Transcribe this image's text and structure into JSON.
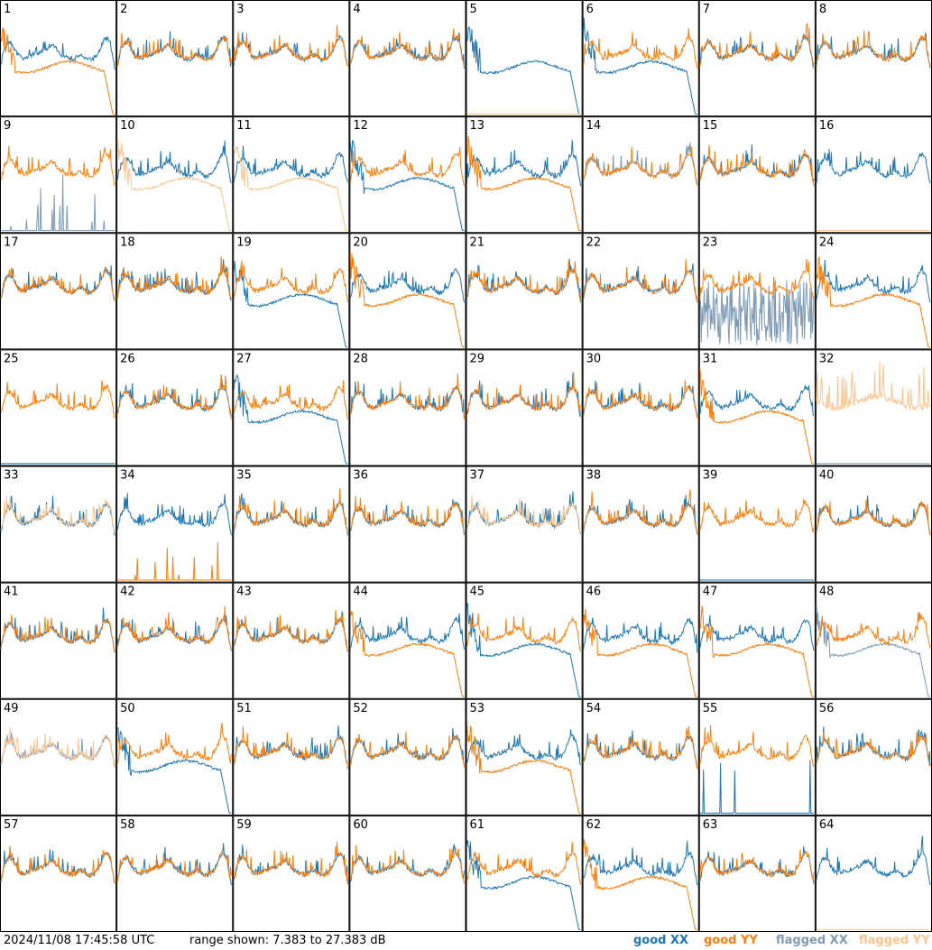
{
  "footer": {
    "timestamp": "2024/11/08 17:45:58 UTC",
    "range_text": "range shown: 7.383 to 27.383 dB",
    "legend": {
      "good_xx": "good XX",
      "good_yy": "good YY",
      "flagged_xx": "flagged XX",
      "flagged_yy": "flagged YY"
    }
  },
  "colors": {
    "good_xx": "#1f77b4",
    "good_yy": "#ff7f0e",
    "flagged_xx": "#7f9bb5",
    "flagged_yy": "#fec48c",
    "grid": "#000000",
    "background": "#ffffff"
  },
  "chart_data": {
    "type": "line",
    "layout": "8x8 small multiples",
    "y_range_db": [
      7.383,
      27.383
    ],
    "tiles": [
      {
        "label": "1",
        "xx": "good",
        "yy": "good",
        "shape_xx": "normal",
        "shape_yy": "low"
      },
      {
        "label": "2",
        "xx": "good",
        "yy": "good",
        "shape_xx": "normal",
        "shape_yy": "normal"
      },
      {
        "label": "3",
        "xx": "good",
        "yy": "good",
        "shape_xx": "normal",
        "shape_yy": "normal"
      },
      {
        "label": "4",
        "xx": "good",
        "yy": "good",
        "shape_xx": "normal",
        "shape_yy": "normal"
      },
      {
        "label": "5",
        "xx": "good",
        "yy": "flagged",
        "shape_xx": "low",
        "shape_yy": "off"
      },
      {
        "label": "6",
        "xx": "good",
        "yy": "good",
        "shape_xx": "low",
        "shape_yy": "normal"
      },
      {
        "label": "7",
        "xx": "good",
        "yy": "good",
        "shape_xx": "normal",
        "shape_yy": "normal"
      },
      {
        "label": "8",
        "xx": "good",
        "yy": "good",
        "shape_xx": "normal",
        "shape_yy": "normal"
      },
      {
        "label": "9",
        "xx": "flagged",
        "yy": "good",
        "shape_xx": "spikes",
        "shape_yy": "normal"
      },
      {
        "label": "10",
        "xx": "good",
        "yy": "flagged",
        "shape_xx": "normal",
        "shape_yy": "low"
      },
      {
        "label": "11",
        "xx": "good",
        "yy": "flagged",
        "shape_xx": "normal",
        "shape_yy": "low"
      },
      {
        "label": "12",
        "xx": "good",
        "yy": "good",
        "shape_xx": "low",
        "shape_yy": "normal"
      },
      {
        "label": "13",
        "xx": "good",
        "yy": "good",
        "shape_xx": "normal",
        "shape_yy": "low"
      },
      {
        "label": "14",
        "xx": "flagged",
        "yy": "good",
        "shape_xx": "normal",
        "shape_yy": "normal"
      },
      {
        "label": "15",
        "xx": "good",
        "yy": "good",
        "shape_xx": "normal",
        "shape_yy": "normal"
      },
      {
        "label": "16",
        "xx": "good",
        "yy": "flagged",
        "shape_xx": "normal",
        "shape_yy": "off"
      },
      {
        "label": "17",
        "xx": "good",
        "yy": "good",
        "shape_xx": "normal",
        "shape_yy": "normal"
      },
      {
        "label": "18",
        "xx": "good",
        "yy": "good",
        "shape_xx": "normal",
        "shape_yy": "normal"
      },
      {
        "label": "19",
        "xx": "good",
        "yy": "good",
        "shape_xx": "low",
        "shape_yy": "normal"
      },
      {
        "label": "20",
        "xx": "good",
        "yy": "good",
        "shape_xx": "normal",
        "shape_yy": "low"
      },
      {
        "label": "21",
        "xx": "good",
        "yy": "good",
        "shape_xx": "normal",
        "shape_yy": "normal"
      },
      {
        "label": "22",
        "xx": "good",
        "yy": "good",
        "shape_xx": "normal",
        "shape_yy": "normal"
      },
      {
        "label": "23",
        "xx": "flagged",
        "yy": "good",
        "shape_xx": "noise",
        "shape_yy": "normal"
      },
      {
        "label": "24",
        "xx": "good",
        "yy": "good",
        "shape_xx": "normal",
        "shape_yy": "low"
      },
      {
        "label": "25",
        "xx": "good",
        "yy": "good",
        "shape_xx": "off",
        "shape_yy": "normal"
      },
      {
        "label": "26",
        "xx": "good",
        "yy": "good",
        "shape_xx": "normal",
        "shape_yy": "normal"
      },
      {
        "label": "27",
        "xx": "good",
        "yy": "good",
        "shape_xx": "low",
        "shape_yy": "normal"
      },
      {
        "label": "28",
        "xx": "good",
        "yy": "good",
        "shape_xx": "normal",
        "shape_yy": "normal"
      },
      {
        "label": "29",
        "xx": "good",
        "yy": "good",
        "shape_xx": "normal",
        "shape_yy": "normal"
      },
      {
        "label": "30",
        "xx": "good",
        "yy": "good",
        "shape_xx": "normal",
        "shape_yy": "normal"
      },
      {
        "label": "31",
        "xx": "good",
        "yy": "good",
        "shape_xx": "normal",
        "shape_yy": "low"
      },
      {
        "label": "32",
        "xx": "flagged",
        "yy": "flagged",
        "shape_xx": "off",
        "shape_yy": "spiky"
      },
      {
        "label": "33",
        "xx": "good",
        "yy": "flagged",
        "shape_xx": "normal",
        "shape_yy": "normal"
      },
      {
        "label": "34",
        "xx": "good",
        "yy": "good",
        "shape_xx": "normal",
        "shape_yy": "spikes"
      },
      {
        "label": "35",
        "xx": "good",
        "yy": "good",
        "shape_xx": "normal",
        "shape_yy": "normal"
      },
      {
        "label": "36",
        "xx": "good",
        "yy": "good",
        "shape_xx": "normal",
        "shape_yy": "normal"
      },
      {
        "label": "37",
        "xx": "good",
        "yy": "flagged",
        "shape_xx": "normal",
        "shape_yy": "normal"
      },
      {
        "label": "38",
        "xx": "good",
        "yy": "good",
        "shape_xx": "normal",
        "shape_yy": "normal"
      },
      {
        "label": "39",
        "xx": "good",
        "yy": "good",
        "shape_xx": "off",
        "shape_yy": "normal"
      },
      {
        "label": "40",
        "xx": "good",
        "yy": "good",
        "shape_xx": "normal",
        "shape_yy": "normal"
      },
      {
        "label": "41",
        "xx": "good",
        "yy": "good",
        "shape_xx": "normal",
        "shape_yy": "normal"
      },
      {
        "label": "42",
        "xx": "good",
        "yy": "good",
        "shape_xx": "normal",
        "shape_yy": "normal"
      },
      {
        "label": "43",
        "xx": "good",
        "yy": "good",
        "shape_xx": "normal",
        "shape_yy": "normal"
      },
      {
        "label": "44",
        "xx": "good",
        "yy": "good",
        "shape_xx": "normal",
        "shape_yy": "low"
      },
      {
        "label": "45",
        "xx": "good",
        "yy": "good",
        "shape_xx": "low",
        "shape_yy": "normal"
      },
      {
        "label": "46",
        "xx": "good",
        "yy": "good",
        "shape_xx": "normal",
        "shape_yy": "low"
      },
      {
        "label": "47",
        "xx": "good",
        "yy": "good",
        "shape_xx": "normal",
        "shape_yy": "low"
      },
      {
        "label": "48",
        "xx": "flagged",
        "yy": "good",
        "shape_xx": "low",
        "shape_yy": "normal"
      },
      {
        "label": "49",
        "xx": "flagged",
        "yy": "flagged",
        "shape_xx": "normal",
        "shape_yy": "normal"
      },
      {
        "label": "50",
        "xx": "good",
        "yy": "good",
        "shape_xx": "low",
        "shape_yy": "normal"
      },
      {
        "label": "51",
        "xx": "good",
        "yy": "good",
        "shape_xx": "normal",
        "shape_yy": "normal"
      },
      {
        "label": "52",
        "xx": "good",
        "yy": "good",
        "shape_xx": "normal",
        "shape_yy": "normal"
      },
      {
        "label": "53",
        "xx": "good",
        "yy": "good",
        "shape_xx": "normal",
        "shape_yy": "low"
      },
      {
        "label": "54",
        "xx": "good",
        "yy": "good",
        "shape_xx": "normal",
        "shape_yy": "normal"
      },
      {
        "label": "55",
        "xx": "good",
        "yy": "good",
        "shape_xx": "spikes",
        "shape_yy": "normal"
      },
      {
        "label": "56",
        "xx": "good",
        "yy": "good",
        "shape_xx": "normal",
        "shape_yy": "normal"
      },
      {
        "label": "57",
        "xx": "good",
        "yy": "good",
        "shape_xx": "normal",
        "shape_yy": "normal"
      },
      {
        "label": "58",
        "xx": "good",
        "yy": "good",
        "shape_xx": "normal",
        "shape_yy": "normal"
      },
      {
        "label": "59",
        "xx": "good",
        "yy": "good",
        "shape_xx": "normal",
        "shape_yy": "normal"
      },
      {
        "label": "60",
        "xx": "good",
        "yy": "good",
        "shape_xx": "normal",
        "shape_yy": "normal"
      },
      {
        "label": "61",
        "xx": "good",
        "yy": "good",
        "shape_xx": "low",
        "shape_yy": "normal"
      },
      {
        "label": "62",
        "xx": "good",
        "yy": "good",
        "shape_xx": "normal",
        "shape_yy": "low"
      },
      {
        "label": "63",
        "xx": "good",
        "yy": "good",
        "shape_xx": "normal",
        "shape_yy": "normal"
      },
      {
        "label": "64",
        "xx": "good",
        "yy": "flagged",
        "shape_xx": "normal",
        "shape_yy": "off"
      }
    ]
  }
}
